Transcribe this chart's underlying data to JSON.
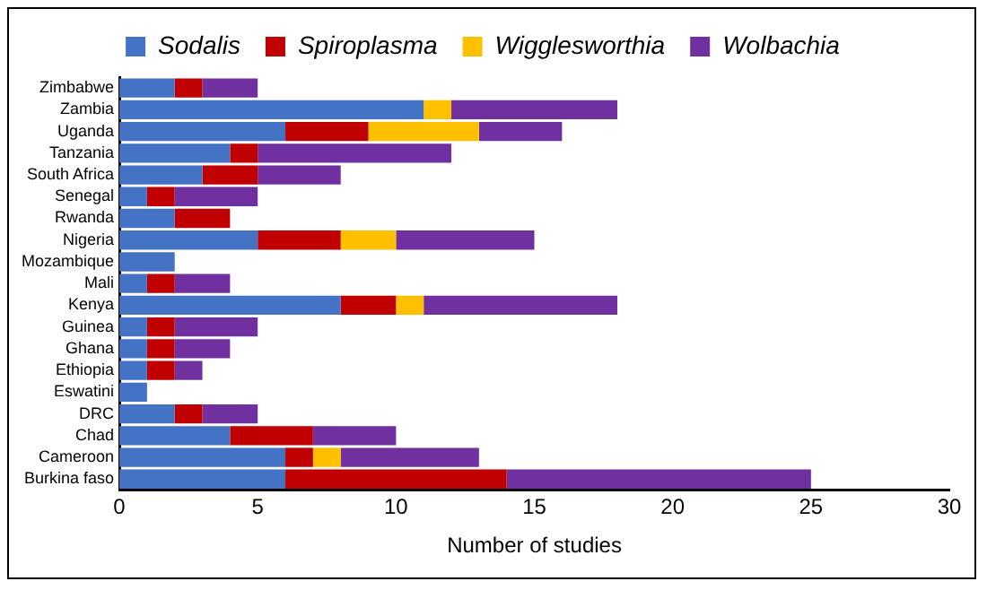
{
  "chart_data": {
    "type": "bar",
    "orientation": "horizontal",
    "stacked": true,
    "xlabel": "Number of studies",
    "categories": [
      "Zimbabwe",
      "Zambia",
      "Uganda",
      "Tanzania",
      "South Africa",
      "Senegal",
      "Rwanda",
      "Nigeria",
      "Mozambique",
      "Mali",
      "Kenya",
      "Guinea",
      "Ghana",
      "Ethiopia",
      "Eswatini",
      "DRC",
      "Chad",
      "Cameroon",
      "Burkina faso"
    ],
    "series": [
      {
        "name": "Sodalis",
        "color": "#4472c4",
        "values": [
          2,
          11,
          6,
          4,
          3,
          1,
          2,
          5,
          2,
          1,
          8,
          1,
          1,
          1,
          1,
          2,
          4,
          6,
          6
        ]
      },
      {
        "name": "Spiroplasma",
        "color": "#c00000",
        "values": [
          1,
          0,
          3,
          1,
          2,
          1,
          2,
          3,
          0,
          1,
          2,
          1,
          1,
          1,
          0,
          1,
          3,
          1,
          8
        ]
      },
      {
        "name": "Wigglesworthia",
        "color": "#ffc000",
        "values": [
          0,
          1,
          4,
          0,
          0,
          0,
          0,
          2,
          0,
          0,
          1,
          0,
          0,
          0,
          0,
          0,
          0,
          1,
          0
        ]
      },
      {
        "name": "Wolbachia",
        "color": "#7030a0",
        "values": [
          2,
          6,
          3,
          7,
          3,
          3,
          0,
          5,
          0,
          2,
          7,
          3,
          2,
          1,
          0,
          2,
          3,
          5,
          11
        ]
      }
    ],
    "xlim": [
      0,
      30
    ],
    "xticks": [
      0,
      5,
      10,
      15,
      20,
      25,
      30
    ],
    "grid": false,
    "legend": "top"
  }
}
